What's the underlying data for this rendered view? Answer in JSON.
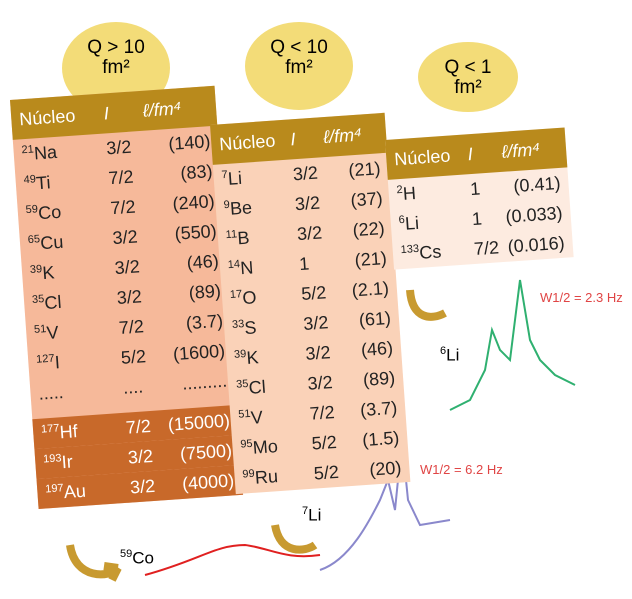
{
  "badges": [
    {
      "label": "Q > 10",
      "unit": "fm²"
    },
    {
      "label": "Q < 10",
      "unit": "fm²"
    },
    {
      "label": "Q < 1",
      "unit": "fm²"
    }
  ],
  "tables": [
    {
      "header": [
        "Núcleo",
        "I",
        "ℓ/fm⁴"
      ],
      "rows": [
        [
          "21",
          "Na",
          "3/2",
          "(140)"
        ],
        [
          "49",
          "Ti",
          "7/2",
          "(83)"
        ],
        [
          "59",
          "Co",
          "7/2",
          "(240)"
        ],
        [
          "65",
          "Cu",
          "3/2",
          "(550)"
        ],
        [
          "39",
          "K",
          "3/2",
          "(46)"
        ],
        [
          "35",
          "Cl",
          "3/2",
          "(89)"
        ],
        [
          "51",
          "V",
          "7/2",
          "(3.7)"
        ],
        [
          "127",
          "I",
          "5/2",
          "(1600)"
        ],
        [
          "",
          ".....",
          "....",
          "........."
        ]
      ],
      "dark_rows": [
        [
          "177",
          "Hf",
          "7/2",
          "(15000)"
        ],
        [
          "193",
          "Ir",
          "3/2",
          "(7500)"
        ],
        [
          "197",
          "Au",
          "3/2",
          "(4000)"
        ]
      ]
    },
    {
      "header": [
        "Núcleo",
        "I",
        "ℓ/fm⁴"
      ],
      "rows": [
        [
          "7",
          "Li",
          "3/2",
          "(21)"
        ],
        [
          "9",
          "Be",
          "3/2",
          "(37)"
        ],
        [
          "11",
          "B",
          "3/2",
          "(22)"
        ],
        [
          "14",
          "N",
          "1",
          "(21)"
        ],
        [
          "17",
          "O",
          "5/2",
          "(2.1)"
        ],
        [
          "33",
          "S",
          "3/2",
          "(61)"
        ],
        [
          "39",
          "K",
          "3/2",
          "(46)"
        ],
        [
          "35",
          "Cl",
          "3/2",
          "(89)"
        ],
        [
          "51",
          "V",
          "7/2",
          "(3.7)"
        ],
        [
          "95",
          "Mo",
          "5/2",
          "(1.5)"
        ],
        [
          "99",
          "Ru",
          "5/2",
          "(20)"
        ]
      ]
    },
    {
      "header": [
        "Núcleo",
        "I",
        "ℓ/fm⁴"
      ],
      "rows": [
        [
          "2",
          "H",
          "1",
          "(0.41)"
        ],
        [
          "6",
          "Li",
          "1",
          "(0.033)"
        ],
        [
          "133",
          "Cs",
          "7/2",
          "(0.016)"
        ]
      ]
    }
  ],
  "spectra": [
    {
      "mass": "59",
      "symbol": "Co"
    },
    {
      "mass": "7",
      "symbol": "Li",
      "width": "W1/2 = 6.2 Hz"
    },
    {
      "mass": "6",
      "symbol": "Li",
      "width": "W1/2 = 2.3 Hz"
    }
  ]
}
